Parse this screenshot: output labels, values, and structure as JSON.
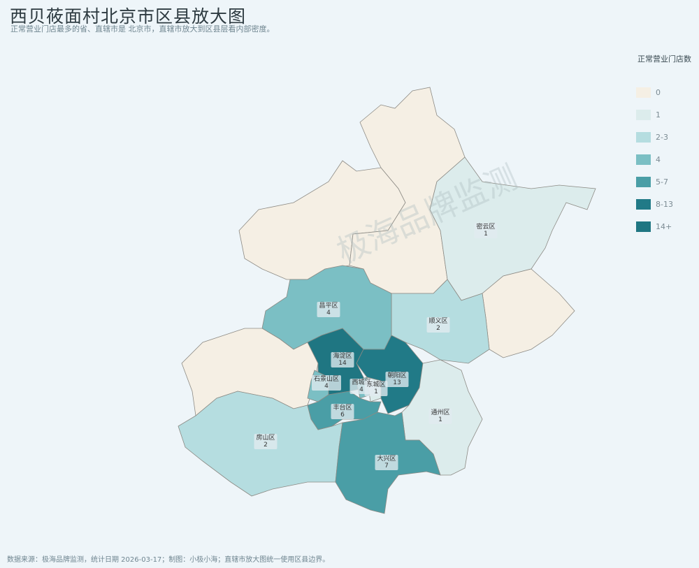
{
  "header": {
    "title": "西贝莜面村北京市区县放大图",
    "subtitle": "正常营业门店最多的省、直辖市是 北京市，直辖市放大到区县层看内部密度。"
  },
  "footer": "数据来源：极海品牌监测，统计日期 2026-03-17；制图：小极小海；直辖市放大图统一使用区县边界。",
  "watermark": "极海品牌监测",
  "legend": {
    "title": "正常营业门店数",
    "items": [
      {
        "label": "0",
        "color": "#f5efe4"
      },
      {
        "label": "1",
        "color": "#dcecec"
      },
      {
        "label": "2-3",
        "color": "#b5dde0"
      },
      {
        "label": "4",
        "color": "#7bbfc4"
      },
      {
        "label": "5-7",
        "color": "#4a9ea6"
      },
      {
        "label": "8-13",
        "color": "#217a87"
      },
      {
        "label": "14+",
        "color": "#1f7682"
      }
    ]
  },
  "districts": [
    {
      "id": "yanqing",
      "value": 0
    },
    {
      "id": "huairou",
      "value": 0
    },
    {
      "id": "miyun",
      "name": "密云区",
      "value": 1
    },
    {
      "id": "pinggu",
      "value": 0
    },
    {
      "id": "shunyi",
      "name": "顺义区",
      "value": 2
    },
    {
      "id": "changping",
      "name": "昌平区",
      "value": 4
    },
    {
      "id": "mentougou",
      "value": 0
    },
    {
      "id": "fangshan",
      "name": "房山区",
      "value": 2
    },
    {
      "id": "haidian",
      "name": "海淀区",
      "value": 14
    },
    {
      "id": "shijingshan",
      "name": "石景山区",
      "value": 4
    },
    {
      "id": "chaoyang",
      "name": "朝阳区",
      "value": 13
    },
    {
      "id": "fengtai",
      "name": "丰台区",
      "value": 6
    },
    {
      "id": "tongzhou",
      "name": "通州区",
      "value": 1
    },
    {
      "id": "daxing",
      "name": "大兴区",
      "value": 7
    },
    {
      "id": "xicheng",
      "name": "西城区",
      "value": 4
    },
    {
      "id": "dongcheng",
      "name": "东城区",
      "value": 1
    }
  ]
}
